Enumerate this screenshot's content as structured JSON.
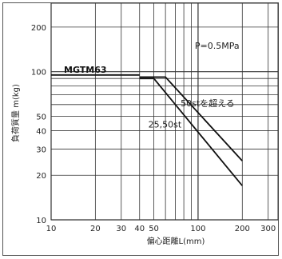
{
  "chart_data": {
    "type": "line",
    "xscale": "log",
    "yscale": "log",
    "xlim": [
      10,
      350
    ],
    "ylim": [
      10,
      290
    ],
    "xticks": [
      10,
      20,
      30,
      40,
      50,
      100,
      200,
      300
    ],
    "xtick_labels": [
      "10",
      "20",
      "30",
      "40",
      "50",
      "100",
      "200",
      "300"
    ],
    "yticks": [
      10,
      20,
      30,
      40,
      50,
      100,
      200
    ],
    "ytick_labels": [
      "10",
      "20",
      "30",
      "40",
      "50",
      "100",
      "200"
    ],
    "xlabel": "偏心距離L(mm)",
    "ylabel": "負荷質量 m(kg)",
    "model_label": "MGTM63",
    "pressure_label": "P=0.5MPa",
    "grid": true,
    "series": [
      {
        "name": "25,50st",
        "x": [
          40,
          50,
          200
        ],
        "y": [
          90,
          90,
          17
        ]
      },
      {
        "name": "50stを超える",
        "x": [
          40,
          60,
          200
        ],
        "y": [
          92,
          92,
          25
        ]
      }
    ],
    "reference_line": {
      "y": 95,
      "x_end": 40
    }
  }
}
